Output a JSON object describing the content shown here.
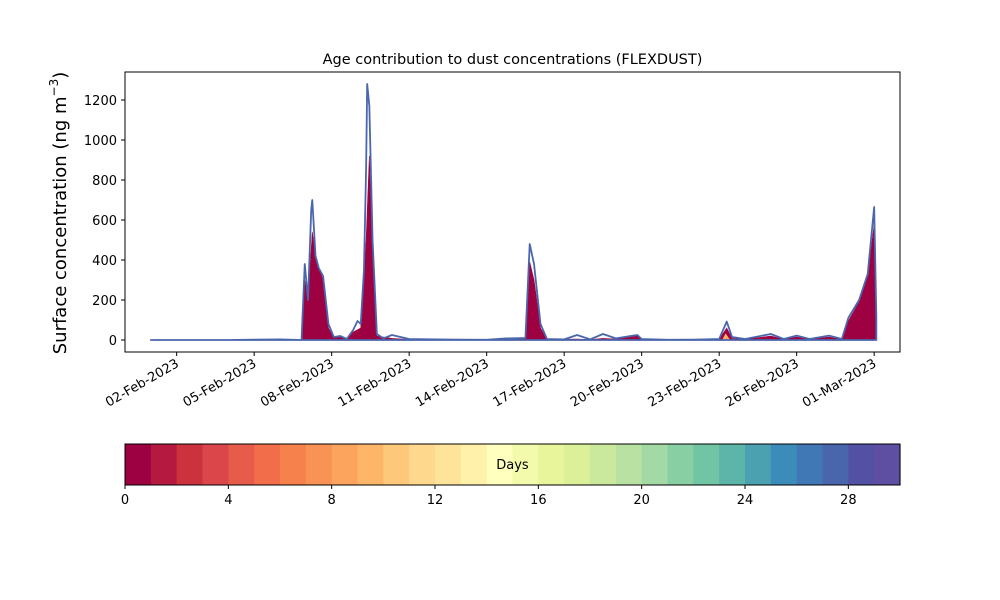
{
  "chart_data": {
    "type": "area",
    "title": "Age contribution to dust concentrations (FLEXDUST)",
    "ylabel": "Surface concentration (ng m⁻³)",
    "ylabel_main": "Surface concentration (ng m",
    "ylabel_sup": "−3",
    "ylabel_close": ")",
    "xlabel": "",
    "xlim": [
      "2023-01-31",
      "2023-03-02"
    ],
    "ylim": [
      -60,
      1340
    ],
    "yticks": [
      0,
      200,
      400,
      600,
      800,
      1000,
      1200
    ],
    "xticks": [
      "2023-02-02",
      "2023-02-05",
      "2023-02-08",
      "2023-02-11",
      "2023-02-14",
      "2023-02-17",
      "2023-02-20",
      "2023-02-23",
      "2023-02-26",
      "2023-03-01"
    ],
    "xtick_labels": [
      "02-Feb-2023",
      "05-Feb-2023",
      "08-Feb-2023",
      "11-Feb-2023",
      "14-Feb-2023",
      "17-Feb-2023",
      "20-Feb-2023",
      "23-Feb-2023",
      "26-Feb-2023",
      "01-Mar-2023"
    ],
    "grid": false,
    "series": [
      {
        "color": "#9e0142",
        "points": [
          [
            "2023-02-01 00:00",
            0
          ],
          [
            "2023-02-04 00:00",
            0
          ],
          [
            "2023-02-06 00:00",
            2
          ],
          [
            "2023-02-06 20:00",
            0
          ],
          [
            "2023-02-06 23:00",
            300
          ],
          [
            "2023-02-07 02:00",
            200
          ],
          [
            "2023-02-07 06:00",
            540
          ],
          [
            "2023-02-07 10:00",
            390
          ],
          [
            "2023-02-07 16:00",
            300
          ],
          [
            "2023-02-07 21:00",
            60
          ],
          [
            "2023-02-08 02:00",
            10
          ],
          [
            "2023-02-08 08:00",
            15
          ],
          [
            "2023-02-08 14:00",
            2
          ],
          [
            "2023-02-08 20:00",
            40
          ],
          [
            "2023-02-09 03:00",
            60
          ],
          [
            "2023-02-09 08:00",
            500
          ],
          [
            "2023-02-09 11:00",
            920
          ],
          [
            "2023-02-09 14:00",
            400
          ],
          [
            "2023-02-09 18:00",
            20
          ],
          [
            "2023-02-10 08:00",
            8
          ],
          [
            "2023-02-11 00:00",
            3
          ],
          [
            "2023-02-12 00:00",
            2
          ],
          [
            "2023-02-13 00:00",
            1
          ],
          [
            "2023-02-14 00:00",
            1
          ],
          [
            "2023-02-14 20:00",
            1
          ],
          [
            "2023-02-15 12:00",
            10
          ],
          [
            "2023-02-15 16:00",
            390
          ],
          [
            "2023-02-15 20:00",
            300
          ],
          [
            "2023-02-16 02:00",
            60
          ],
          [
            "2023-02-16 08:00",
            3
          ],
          [
            "2023-02-17 12:00",
            5
          ],
          [
            "2023-02-18 00:00",
            2
          ],
          [
            "2023-02-18 12:00",
            8
          ],
          [
            "2023-02-19 00:00",
            5
          ],
          [
            "2023-02-19 20:00",
            20
          ],
          [
            "2023-02-20 00:00",
            3
          ],
          [
            "2023-02-21 00:00",
            1
          ],
          [
            "2023-02-22 00:00",
            1
          ],
          [
            "2023-02-23 00:00",
            3
          ],
          [
            "2023-02-23 07:00",
            60
          ],
          [
            "2023-02-23 12:00",
            8
          ],
          [
            "2023-02-24 00:00",
            3
          ],
          [
            "2023-02-25 00:00",
            20
          ],
          [
            "2023-02-25 12:00",
            3
          ],
          [
            "2023-02-26 00:00",
            15
          ],
          [
            "2023-02-26 12:00",
            3
          ],
          [
            "2023-02-27 06:00",
            15
          ],
          [
            "2023-02-27 18:00",
            3
          ],
          [
            "2023-02-28 00:00",
            95
          ],
          [
            "2023-02-28 10:00",
            190
          ],
          [
            "2023-02-28 18:00",
            320
          ],
          [
            "2023-03-01 00:00",
            580
          ],
          [
            "2023-03-01 02:00",
            100
          ]
        ]
      },
      {
        "color": "#fdae61",
        "points": [
          [
            "2023-02-14 16:00",
            0
          ],
          [
            "2023-02-14 18:00",
            8
          ],
          [
            "2023-02-14 22:00",
            0
          ],
          [
            "2023-02-23 03:00",
            0
          ],
          [
            "2023-02-23 06:00",
            30
          ],
          [
            "2023-02-23 10:00",
            0
          ]
        ]
      },
      {
        "color": "#4a66ac",
        "points": [
          [
            "2023-02-01 00:00",
            0
          ],
          [
            "2023-02-02 00:00",
            0
          ],
          [
            "2023-02-03 00:00",
            0
          ],
          [
            "2023-02-04 00:00",
            0
          ],
          [
            "2023-02-05 00:00",
            2
          ],
          [
            "2023-02-06 00:00",
            3
          ],
          [
            "2023-02-06 20:00",
            0
          ],
          [
            "2023-02-06 23:00",
            380
          ],
          [
            "2023-02-07 02:00",
            200
          ],
          [
            "2023-02-07 05:00",
            650
          ],
          [
            "2023-02-07 06:00",
            700
          ],
          [
            "2023-02-07 09:00",
            420
          ],
          [
            "2023-02-07 12:00",
            360
          ],
          [
            "2023-02-07 16:00",
            320
          ],
          [
            "2023-02-07 21:00",
            80
          ],
          [
            "2023-02-08 02:00",
            15
          ],
          [
            "2023-02-08 08:00",
            20
          ],
          [
            "2023-02-08 14:00",
            5
          ],
          [
            "2023-02-08 20:00",
            50
          ],
          [
            "2023-02-09 00:00",
            95
          ],
          [
            "2023-02-09 03:00",
            80
          ],
          [
            "2023-02-09 06:00",
            350
          ],
          [
            "2023-02-09 08:00",
            860
          ],
          [
            "2023-02-09 09:00",
            1280
          ],
          [
            "2023-02-09 11:00",
            1170
          ],
          [
            "2023-02-09 14:00",
            500
          ],
          [
            "2023-02-09 18:00",
            30
          ],
          [
            "2023-02-10 00:00",
            8
          ],
          [
            "2023-02-10 08:00",
            25
          ],
          [
            "2023-02-10 20:00",
            10
          ],
          [
            "2023-02-11 00:00",
            5
          ],
          [
            "2023-02-12 00:00",
            3
          ],
          [
            "2023-02-13 00:00",
            2
          ],
          [
            "2023-02-14 00:00",
            1
          ],
          [
            "2023-02-14 18:00",
            8
          ],
          [
            "2023-02-15 12:00",
            10
          ],
          [
            "2023-02-15 16:00",
            480
          ],
          [
            "2023-02-15 20:00",
            380
          ],
          [
            "2023-02-16 02:00",
            80
          ],
          [
            "2023-02-16 08:00",
            5
          ],
          [
            "2023-02-17 00:00",
            3
          ],
          [
            "2023-02-17 12:00",
            25
          ],
          [
            "2023-02-18 00:00",
            3
          ],
          [
            "2023-02-18 12:00",
            30
          ],
          [
            "2023-02-19 00:00",
            8
          ],
          [
            "2023-02-19 20:00",
            25
          ],
          [
            "2023-02-20 00:00",
            5
          ],
          [
            "2023-02-21 00:00",
            1
          ],
          [
            "2023-02-22 00:00",
            2
          ],
          [
            "2023-02-23 00:00",
            5
          ],
          [
            "2023-02-23 07:00",
            92
          ],
          [
            "2023-02-23 12:00",
            15
          ],
          [
            "2023-02-24 00:00",
            5
          ],
          [
            "2023-02-25 00:00",
            30
          ],
          [
            "2023-02-25 12:00",
            5
          ],
          [
            "2023-02-26 00:00",
            22
          ],
          [
            "2023-02-26 12:00",
            5
          ],
          [
            "2023-02-27 06:00",
            22
          ],
          [
            "2023-02-27 18:00",
            5
          ],
          [
            "2023-02-28 00:00",
            110
          ],
          [
            "2023-02-28 10:00",
            200
          ],
          [
            "2023-02-28 18:00",
            330
          ],
          [
            "2023-03-01 00:00",
            665
          ],
          [
            "2023-03-01 02:00",
            120
          ]
        ]
      }
    ],
    "colorbar": {
      "label": "Days",
      "range": [
        0,
        30
      ],
      "ticks": [
        0,
        4,
        8,
        12,
        16,
        20,
        24,
        28
      ],
      "colors": [
        "#9e0142",
        "#b5193f",
        "#cc323d",
        "#da464a",
        "#e65b4a",
        "#f26d4a",
        "#f6814d",
        "#f99355",
        "#fca35e",
        "#fdb668",
        "#fec87b",
        "#fed88c",
        "#fee49a",
        "#fff1a9",
        "#ffffbe",
        "#f3faab",
        "#e9f59b",
        "#dbf099",
        "#cbe99d",
        "#b9e1a2",
        "#a2d9a4",
        "#89cfa4",
        "#71c5a4",
        "#5db4a9",
        "#4ca1b0",
        "#3b8cb9",
        "#3f78b5",
        "#4966ad",
        "#5251a3",
        "#5e4fa2"
      ]
    }
  }
}
